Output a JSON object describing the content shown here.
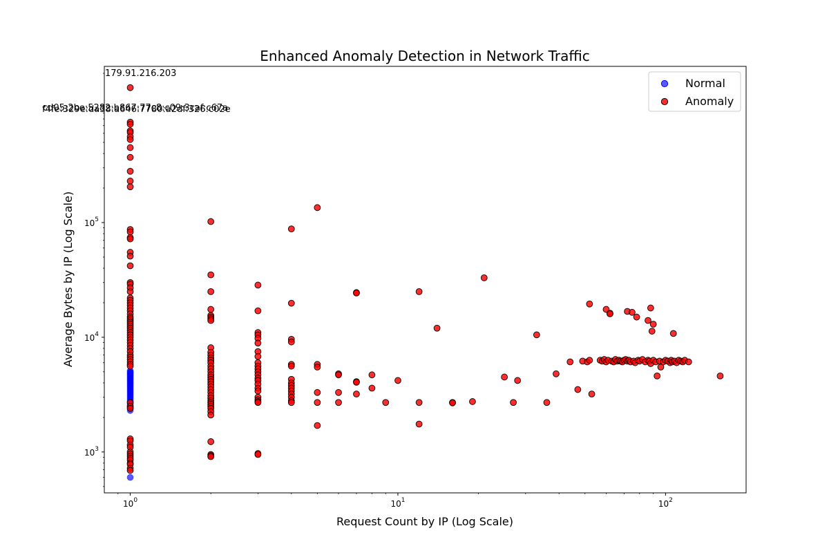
{
  "chart_data": {
    "type": "scatter",
    "title": "Enhanced Anomaly Detection in Network Traffic",
    "xlabel": "Request Count by IP (Log Scale)",
    "ylabel": "Average Bytes by IP (Log Scale)",
    "xscale": "log",
    "yscale": "log",
    "xlim": [
      0.8,
      200
    ],
    "ylim": [
      440,
      2300000
    ],
    "x_ticks": [
      1,
      10,
      100
    ],
    "x_tick_labels": [
      "10^0",
      "10^1",
      "10^2"
    ],
    "y_ticks": [
      1000,
      10000,
      100000
    ],
    "y_tick_labels": [
      "10^3",
      "10^4",
      "10^5"
    ],
    "grid": false,
    "legend": "top-right",
    "colors": {
      "normal": "#0000ff",
      "anomaly": "#ff0000",
      "edge": "#000000"
    },
    "series": [
      {
        "name": "Normal",
        "color": "#0000ff",
        "points": [
          [
            1,
            600
          ],
          [
            1,
            2300
          ],
          [
            1,
            2400
          ],
          [
            1,
            2500
          ],
          [
            1,
            2600
          ],
          [
            1,
            2700
          ],
          [
            1,
            2800
          ],
          [
            1,
            2900
          ],
          [
            1,
            3000
          ],
          [
            1,
            3100
          ],
          [
            1,
            3200
          ],
          [
            1,
            3300
          ],
          [
            1,
            3400
          ],
          [
            1,
            3500
          ],
          [
            1,
            3600
          ],
          [
            1,
            3700
          ],
          [
            1,
            3800
          ],
          [
            1,
            3900
          ],
          [
            1,
            4000
          ],
          [
            1,
            4100
          ],
          [
            1,
            4200
          ],
          [
            1,
            4300
          ],
          [
            1,
            4400
          ],
          [
            1,
            4500
          ],
          [
            1,
            4600
          ],
          [
            1,
            4700
          ],
          [
            1,
            4800
          ],
          [
            1,
            4900
          ],
          [
            1,
            5000
          ],
          [
            1,
            5100
          ]
        ]
      },
      {
        "name": "Anomaly",
        "color": "#ff0000",
        "points": [
          [
            1,
            1500000
          ],
          [
            1,
            750000
          ],
          [
            1,
            720000
          ],
          [
            1,
            630000
          ],
          [
            1,
            610000
          ],
          [
            1,
            560000
          ],
          [
            1,
            530000
          ],
          [
            1,
            450000
          ],
          [
            1,
            370000
          ],
          [
            1,
            280000
          ],
          [
            1,
            230000
          ],
          [
            1,
            205000
          ],
          [
            1,
            87000
          ],
          [
            1,
            83000
          ],
          [
            1,
            74000
          ],
          [
            1,
            72000
          ],
          [
            1,
            55000
          ],
          [
            1,
            51000
          ],
          [
            1,
            42000
          ],
          [
            1,
            30000
          ],
          [
            1,
            29000
          ],
          [
            1,
            27000
          ],
          [
            1,
            25000
          ],
          [
            1,
            22000
          ],
          [
            1,
            21000
          ],
          [
            1,
            20000
          ],
          [
            1,
            19000
          ],
          [
            1,
            18000
          ],
          [
            1,
            17000
          ],
          [
            1,
            16000
          ],
          [
            1,
            15000
          ],
          [
            1,
            14500
          ],
          [
            1,
            14000
          ],
          [
            1,
            13500
          ],
          [
            1,
            13000
          ],
          [
            1,
            12500
          ],
          [
            1,
            12000
          ],
          [
            1,
            11500
          ],
          [
            1,
            11000
          ],
          [
            1,
            10500
          ],
          [
            1,
            10000
          ],
          [
            1,
            9500
          ],
          [
            1,
            9000
          ],
          [
            1,
            8500
          ],
          [
            1,
            8000
          ],
          [
            1,
            7500
          ],
          [
            1,
            7000
          ],
          [
            1,
            6700
          ],
          [
            1,
            6400
          ],
          [
            1,
            6100
          ],
          [
            1,
            5800
          ],
          [
            1,
            5600
          ],
          [
            1,
            2700
          ],
          [
            1,
            2500
          ],
          [
            1,
            2400
          ],
          [
            1,
            1300
          ],
          [
            1,
            1250
          ],
          [
            1,
            1150
          ],
          [
            1,
            1100
          ],
          [
            1,
            1000
          ],
          [
            1,
            960
          ],
          [
            1,
            920
          ],
          [
            1,
            880
          ],
          [
            1,
            850
          ],
          [
            1,
            800
          ],
          [
            1,
            780
          ],
          [
            1,
            720
          ],
          [
            1,
            690
          ],
          [
            2,
            102000
          ],
          [
            2,
            35000
          ],
          [
            2,
            25000
          ],
          [
            2,
            17500
          ],
          [
            2,
            15500
          ],
          [
            2,
            15000
          ],
          [
            2,
            14500
          ],
          [
            2,
            14000
          ],
          [
            2,
            8100
          ],
          [
            2,
            7400
          ],
          [
            2,
            7000
          ],
          [
            2,
            6600
          ],
          [
            2,
            6300
          ],
          [
            2,
            6000
          ],
          [
            2,
            5600
          ],
          [
            2,
            5300
          ],
          [
            2,
            5000
          ],
          [
            2,
            4700
          ],
          [
            2,
            4500
          ],
          [
            2,
            4300
          ],
          [
            2,
            4100
          ],
          [
            2,
            3900
          ],
          [
            2,
            3700
          ],
          [
            2,
            3500
          ],
          [
            2,
            3300
          ],
          [
            2,
            3100
          ],
          [
            2,
            2950
          ],
          [
            2,
            2800
          ],
          [
            2,
            2700
          ],
          [
            2,
            2600
          ],
          [
            2,
            2500
          ],
          [
            2,
            2400
          ],
          [
            2,
            2250
          ],
          [
            2,
            2100
          ],
          [
            2,
            1230
          ],
          [
            2,
            950
          ],
          [
            2,
            930
          ],
          [
            2,
            910
          ],
          [
            3,
            28500
          ],
          [
            3,
            17000
          ],
          [
            3,
            11000
          ],
          [
            3,
            10500
          ],
          [
            3,
            9800
          ],
          [
            3,
            8900
          ],
          [
            3,
            7500
          ],
          [
            3,
            6800
          ],
          [
            3,
            6000
          ],
          [
            3,
            5600
          ],
          [
            3,
            5300
          ],
          [
            3,
            5000
          ],
          [
            3,
            4700
          ],
          [
            3,
            4400
          ],
          [
            3,
            4200
          ],
          [
            3,
            3900
          ],
          [
            3,
            3600
          ],
          [
            3,
            3400
          ],
          [
            3,
            3000
          ],
          [
            3,
            2850
          ],
          [
            3,
            2750
          ],
          [
            3,
            2700
          ],
          [
            3,
            970
          ],
          [
            3,
            950
          ],
          [
            4,
            88000
          ],
          [
            4,
            19800
          ],
          [
            4,
            9600
          ],
          [
            4,
            9100
          ],
          [
            4,
            5800
          ],
          [
            4,
            5600
          ],
          [
            4,
            4300
          ],
          [
            4,
            4000
          ],
          [
            4,
            3800
          ],
          [
            4,
            3600
          ],
          [
            4,
            3400
          ],
          [
            4,
            3200
          ],
          [
            4,
            3000
          ],
          [
            4,
            2800
          ],
          [
            4,
            2700
          ],
          [
            5,
            135000
          ],
          [
            5,
            5800
          ],
          [
            5,
            5500
          ],
          [
            5,
            3300
          ],
          [
            5,
            2700
          ],
          [
            5,
            1700
          ],
          [
            6,
            4800
          ],
          [
            6,
            4700
          ],
          [
            6,
            3300
          ],
          [
            6,
            2700
          ],
          [
            7,
            24500
          ],
          [
            7,
            24300
          ],
          [
            7,
            4100
          ],
          [
            7,
            4050
          ],
          [
            7,
            3200
          ],
          [
            8,
            4700
          ],
          [
            8,
            3600
          ],
          [
            9,
            2700
          ],
          [
            10,
            4200
          ],
          [
            12,
            25000
          ],
          [
            12,
            2700
          ],
          [
            12,
            1750
          ],
          [
            14,
            12000
          ],
          [
            16,
            2700
          ],
          [
            16,
            2680
          ],
          [
            19,
            2750
          ],
          [
            21,
            33000
          ],
          [
            25,
            4500
          ],
          [
            27,
            2700
          ],
          [
            28,
            4200
          ],
          [
            33,
            10500
          ],
          [
            36,
            2700
          ],
          [
            39,
            4800
          ],
          [
            44,
            6100
          ],
          [
            47,
            3500
          ],
          [
            49,
            6200
          ],
          [
            51,
            6100
          ],
          [
            52,
            6300
          ],
          [
            52,
            19500
          ],
          [
            53,
            3200
          ],
          [
            57,
            6300
          ],
          [
            58,
            6200
          ],
          [
            59,
            6400
          ],
          [
            60,
            6100
          ],
          [
            60,
            17500
          ],
          [
            61,
            6300
          ],
          [
            62,
            16200
          ],
          [
            62,
            16000
          ],
          [
            63,
            6200
          ],
          [
            64,
            6100
          ],
          [
            65,
            6400
          ],
          [
            66,
            6200
          ],
          [
            67,
            6300
          ],
          [
            68,
            6200
          ],
          [
            69,
            6100
          ],
          [
            70,
            6300
          ],
          [
            71,
            6400
          ],
          [
            72,
            6200
          ],
          [
            72,
            16800
          ],
          [
            73,
            6300
          ],
          [
            74,
            6100
          ],
          [
            75,
            16500
          ],
          [
            76,
            6200
          ],
          [
            77,
            6000
          ],
          [
            78,
            15000
          ],
          [
            79,
            6300
          ],
          [
            80,
            6200
          ],
          [
            82,
            6400
          ],
          [
            84,
            6100
          ],
          [
            86,
            6300
          ],
          [
            86,
            14000
          ],
          [
            87,
            6200
          ],
          [
            88,
            18000
          ],
          [
            88,
            5900
          ],
          [
            89,
            11300
          ],
          [
            90,
            13000
          ],
          [
            90,
            6300
          ],
          [
            92,
            6100
          ],
          [
            93,
            4600
          ],
          [
            95,
            6200
          ],
          [
            96,
            5500
          ],
          [
            98,
            6100
          ],
          [
            100,
            6300
          ],
          [
            102,
            6200
          ],
          [
            104,
            6000
          ],
          [
            105,
            6300
          ],
          [
            106,
            6100
          ],
          [
            107,
            10800
          ],
          [
            108,
            6200
          ],
          [
            110,
            6000
          ],
          [
            112,
            6300
          ],
          [
            114,
            6200
          ],
          [
            116,
            6100
          ],
          [
            118,
            6300
          ],
          [
            122,
            6100
          ],
          [
            160,
            4600
          ]
        ]
      }
    ],
    "annotations": [
      {
        "text": "179.91.216.203",
        "x": 1,
        "y": 1500000
      },
      {
        "text": "cd05:2be:5282:b867:77c8:c09:3caf:c67a",
        "x": 1,
        "y": 750000
      },
      {
        "text": "f4fe:329e:da38:a646:7780:a2df:326:c02e",
        "x": 1,
        "y": 720000
      }
    ]
  }
}
